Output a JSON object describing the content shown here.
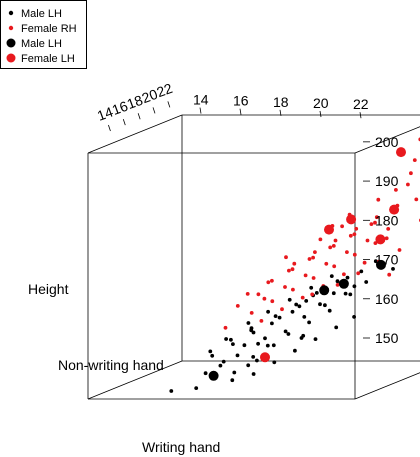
{
  "chart_data": {
    "type": "scatter",
    "projection": "3d",
    "title": "",
    "axes": {
      "x": {
        "label": "Writing hand",
        "range": [
          13,
          23.5
        ],
        "ticks": [
          14,
          16,
          18,
          20,
          22
        ]
      },
      "y": {
        "label": "Non-writing hand",
        "range": [
          13,
          23.5
        ],
        "ticks": [
          14,
          16,
          18,
          20,
          22
        ]
      },
      "z": {
        "label": "Height",
        "range": [
          150,
          202
        ],
        "ticks": [
          150,
          160,
          170,
          180,
          190,
          200
        ]
      }
    },
    "grid": false,
    "legend": {
      "placement": "top-left",
      "entries": [
        {
          "label": "Male LH",
          "color": "#000000",
          "marker": "small-dot"
        },
        {
          "label": "Female RH",
          "color": "#e8191e",
          "marker": "small-dot"
        },
        {
          "label": "Male LH",
          "color": "#000000",
          "marker": "large-dot"
        },
        {
          "label": "Female LH",
          "color": "#e8191e",
          "marker": "large-dot"
        }
      ]
    },
    "series": [
      {
        "name": "Male LH",
        "color": "#000000",
        "marker": "small-dot",
        "points": [
          [
            16.5,
            16.2,
            153
          ],
          [
            17.0,
            16.8,
            155
          ],
          [
            16.8,
            17.0,
            154
          ],
          [
            17.4,
            17.2,
            156
          ],
          [
            17.6,
            17.4,
            158
          ],
          [
            18.0,
            17.8,
            158
          ],
          [
            17.8,
            17.6,
            161
          ],
          [
            18.2,
            18.0,
            159
          ],
          [
            18.4,
            18.2,
            162
          ],
          [
            18.6,
            18.5,
            163
          ],
          [
            18.8,
            18.6,
            160
          ],
          [
            19.0,
            18.8,
            164
          ],
          [
            19.2,
            19.0,
            165
          ],
          [
            19.4,
            19.2,
            166
          ],
          [
            19.6,
            19.4,
            167
          ],
          [
            19.8,
            19.6,
            165
          ],
          [
            20.0,
            19.8,
            168
          ],
          [
            20.2,
            20.0,
            167
          ],
          [
            20.4,
            20.2,
            169
          ],
          [
            20.6,
            20.4,
            170
          ],
          [
            20.8,
            20.6,
            168
          ],
          [
            21.0,
            20.8,
            171
          ],
          [
            17.2,
            16.5,
            160
          ],
          [
            17.9,
            17.0,
            163
          ],
          [
            18.5,
            17.5,
            165
          ],
          [
            19.1,
            18.2,
            167
          ],
          [
            19.7,
            18.9,
            169
          ],
          [
            20.3,
            19.5,
            171
          ],
          [
            18.1,
            18.6,
            157
          ],
          [
            18.7,
            19.2,
            159
          ],
          [
            19.3,
            19.8,
            161
          ],
          [
            19.9,
            20.4,
            163
          ],
          [
            16.4,
            17.0,
            157
          ],
          [
            17.0,
            17.6,
            159
          ],
          [
            17.6,
            18.2,
            161
          ],
          [
            18.3,
            18.9,
            163
          ],
          [
            18.9,
            19.5,
            165
          ],
          [
            19.5,
            20.1,
            167
          ],
          [
            20.1,
            20.7,
            169
          ],
          [
            18.0,
            17.3,
            152
          ],
          [
            18.6,
            17.9,
            154
          ],
          [
            19.2,
            18.5,
            156
          ],
          [
            19.8,
            19.1,
            158
          ],
          [
            20.4,
            19.7,
            160
          ],
          [
            17.3,
            16.9,
            151
          ],
          [
            16.2,
            16.0,
            150
          ],
          [
            17.7,
            18.1,
            155
          ],
          [
            18.3,
            18.7,
            157
          ],
          [
            19.5,
            18.7,
            163
          ],
          [
            20.1,
            19.3,
            165
          ],
          [
            20.7,
            19.9,
            167
          ],
          [
            21.3,
            20.5,
            169
          ],
          [
            16.9,
            15.8,
            157
          ],
          [
            17.5,
            16.4,
            159
          ],
          [
            18.1,
            17.0,
            161
          ],
          [
            20.5,
            21.0,
            166
          ],
          [
            19.0,
            20.0,
            158
          ],
          [
            17.4,
            18.4,
            153
          ],
          [
            21.5,
            21.0,
            173
          ],
          [
            15.5,
            15.2,
            150
          ],
          [
            22.0,
            21.5,
            171
          ],
          [
            21.0,
            20.0,
            162
          ],
          [
            19.6,
            18.1,
            159
          ],
          [
            18.2,
            17.1,
            155
          ],
          [
            17.1,
            17.7,
            152
          ]
        ]
      },
      {
        "name": "Female RH",
        "color": "#e8191e",
        "marker": "small-dot",
        "points": [
          [
            18.0,
            18.5,
            167
          ],
          [
            18.6,
            19.1,
            169
          ],
          [
            19.2,
            19.7,
            171
          ],
          [
            19.8,
            20.3,
            173
          ],
          [
            20.4,
            20.9,
            175
          ],
          [
            21.0,
            21.5,
            177
          ],
          [
            21.6,
            22.1,
            179
          ],
          [
            17.5,
            18.5,
            164
          ],
          [
            18.1,
            19.1,
            166
          ],
          [
            18.7,
            19.7,
            168
          ],
          [
            19.3,
            20.3,
            170
          ],
          [
            19.9,
            20.9,
            172
          ],
          [
            20.5,
            21.5,
            174
          ],
          [
            21.1,
            22.1,
            176
          ],
          [
            19.0,
            19.0,
            174
          ],
          [
            19.6,
            19.6,
            176
          ],
          [
            20.2,
            20.2,
            178
          ],
          [
            20.8,
            20.8,
            180
          ],
          [
            21.4,
            21.4,
            182
          ],
          [
            22.0,
            22.0,
            184
          ],
          [
            18.4,
            18.2,
            171
          ],
          [
            19.0,
            18.8,
            173
          ],
          [
            19.6,
            19.4,
            175
          ],
          [
            20.2,
            20.0,
            177
          ],
          [
            20.8,
            20.6,
            179
          ],
          [
            21.4,
            21.2,
            181
          ],
          [
            22.0,
            21.8,
            183
          ],
          [
            22.6,
            22.4,
            185
          ],
          [
            20.0,
            21.0,
            168
          ],
          [
            20.6,
            21.6,
            170
          ],
          [
            21.2,
            22.2,
            172
          ],
          [
            21.8,
            22.8,
            174
          ],
          [
            17.8,
            17.2,
            169
          ],
          [
            18.4,
            17.8,
            171
          ],
          [
            19.0,
            18.4,
            173
          ],
          [
            19.6,
            19.0,
            175
          ],
          [
            20.2,
            19.6,
            177
          ],
          [
            20.8,
            20.2,
            179
          ],
          [
            21.4,
            20.8,
            181
          ],
          [
            22.2,
            22.6,
            188
          ],
          [
            22.8,
            23.0,
            190
          ],
          [
            21.8,
            22.4,
            187
          ],
          [
            22.4,
            22.8,
            193
          ],
          [
            21.6,
            21.0,
            186
          ],
          [
            22.6,
            21.8,
            191
          ],
          [
            18.2,
            17.6,
            163
          ],
          [
            18.8,
            18.2,
            165
          ],
          [
            19.4,
            18.8,
            167
          ],
          [
            20.0,
            19.4,
            169
          ],
          [
            20.6,
            20.0,
            171
          ],
          [
            21.2,
            20.6,
            173
          ],
          [
            17.2,
            17.8,
            166
          ],
          [
            17.8,
            18.4,
            168
          ],
          [
            23.0,
            22.5,
            196
          ],
          [
            20.5,
            19.0,
            182
          ],
          [
            19.5,
            20.5,
            178
          ],
          [
            21.5,
            22.5,
            169
          ],
          [
            22.5,
            23.2,
            180
          ],
          [
            18.5,
            19.5,
            175
          ],
          [
            20.0,
            21.5,
            180
          ],
          [
            21.0,
            19.5,
            184
          ],
          [
            22.0,
            20.8,
            178
          ],
          [
            17.0,
            17.0,
            162
          ],
          [
            19.0,
            21.0,
            166
          ],
          [
            22.9,
            22.0,
            198
          ]
        ]
      },
      {
        "name": "Male LH",
        "color": "#000000",
        "marker": "large-dot",
        "points": [
          [
            16.6,
            16.8,
            152
          ],
          [
            20.0,
            19.5,
            168
          ],
          [
            20.6,
            20.0,
            169
          ],
          [
            21.6,
            21.3,
            172
          ]
        ]
      },
      {
        "name": "Female LH",
        "color": "#e8191e",
        "marker": "large-dot",
        "points": [
          [
            18.2,
            18.0,
            155
          ],
          [
            19.8,
            20.6,
            180
          ],
          [
            20.6,
            20.8,
            182
          ],
          [
            21.4,
            21.8,
            177
          ],
          [
            21.8,
            22.2,
            183
          ],
          [
            22.0,
            22.4,
            195
          ],
          [
            23.2,
            23.0,
            192
          ]
        ]
      }
    ]
  }
}
